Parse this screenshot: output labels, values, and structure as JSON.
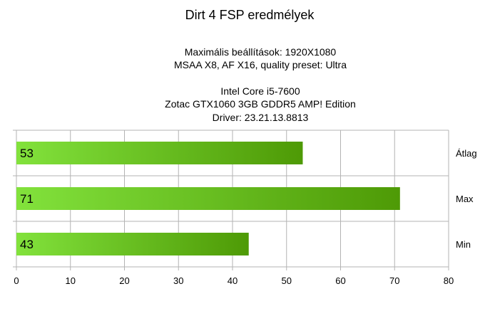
{
  "chart_data": {
    "type": "bar",
    "orientation": "horizontal",
    "title": "Dirt 4 FSP eredmélyek",
    "subtitle_lines": [
      "Maximális beállítások: 1920X1080",
      "MSAA X8, AF X16, quality preset: Ultra",
      "",
      "Intel Core i5-7600",
      "Zotac GTX1060 3GB GDDR5 AMP! Edition",
      "Driver: 23.21.13.8813"
    ],
    "categories": [
      "Átlag",
      "Max",
      "Min"
    ],
    "values": [
      53,
      71,
      43
    ],
    "data_labels": [
      "53",
      "71",
      "43"
    ],
    "xlim": [
      0,
      80
    ],
    "xticks": [
      "0",
      "10",
      "20",
      "30",
      "40",
      "50",
      "60",
      "70",
      "80"
    ],
    "grid": true,
    "category_label_side": "right",
    "bar_gradient": [
      "#82e23c",
      "#4e9a06"
    ],
    "gridline_color": "#b3b3b3",
    "text_color": "#000000"
  }
}
